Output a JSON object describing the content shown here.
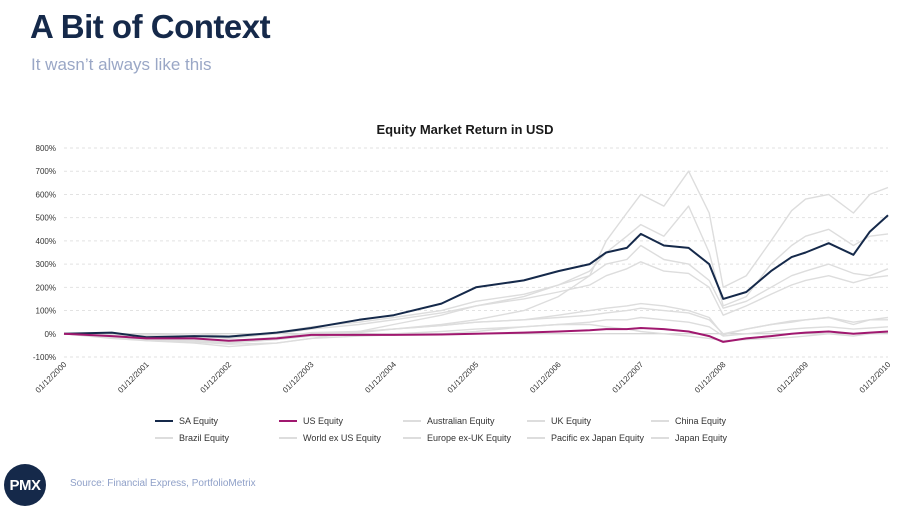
{
  "header": {
    "title": "A Bit of Context",
    "subtitle": "It wasn’t always like this"
  },
  "footer": {
    "logo": "PMX",
    "source": "Source: Financial Express, PortfolioMetrix"
  },
  "chart_data": {
    "type": "line",
    "title": "Equity Market Return in USD",
    "xlabel": "",
    "ylabel": "",
    "ylim": [
      -100,
      800
    ],
    "ytick_labels": [
      "-100%",
      "0%",
      "100%",
      "200%",
      "300%",
      "400%",
      "500%",
      "600%",
      "700%",
      "800%"
    ],
    "xtick_labels": [
      "01/12/2000",
      "01/12/2001",
      "01/12/2002",
      "01/12/2003",
      "01/12/2004",
      "01/12/2005",
      "01/12/2006",
      "01/12/2007",
      "01/12/2008",
      "01/12/2009",
      "01/12/2010"
    ],
    "x": [
      2000.92,
      2001.5,
      2001.92,
      2002.5,
      2002.92,
      2003.5,
      2003.92,
      2004.5,
      2004.92,
      2005.5,
      2005.92,
      2006.5,
      2006.92,
      2007.3,
      2007.5,
      2007.75,
      2007.92,
      2008.2,
      2008.5,
      2008.75,
      2008.92,
      2009.2,
      2009.5,
      2009.75,
      2009.92,
      2010.2,
      2010.5,
      2010.7,
      2010.92
    ],
    "grid": true,
    "legend_position": "bottom",
    "series": [
      {
        "name": "SA Equity",
        "color": "#15294a",
        "highlight": true,
        "values": [
          0,
          5,
          -15,
          -10,
          -12,
          5,
          25,
          60,
          80,
          130,
          200,
          230,
          270,
          300,
          350,
          370,
          430,
          380,
          370,
          300,
          150,
          180,
          270,
          330,
          350,
          390,
          340,
          440,
          510
        ]
      },
      {
        "name": "US Equity",
        "color": "#a0186f",
        "highlight": true,
        "values": [
          0,
          -10,
          -20,
          -20,
          -30,
          -20,
          -5,
          -5,
          -5,
          -3,
          0,
          5,
          10,
          15,
          20,
          20,
          25,
          20,
          10,
          -10,
          -35,
          -20,
          -10,
          0,
          5,
          10,
          0,
          5,
          10
        ]
      },
      {
        "name": "Australian Equity",
        "color": "#dddddd",
        "values": [
          0,
          -5,
          -5,
          0,
          -10,
          5,
          30,
          50,
          70,
          100,
          140,
          170,
          210,
          250,
          300,
          320,
          380,
          320,
          300,
          230,
          110,
          140,
          200,
          250,
          270,
          300,
          260,
          250,
          280
        ]
      },
      {
        "name": "UK Equity",
        "color": "#dddddd",
        "values": [
          0,
          -10,
          -20,
          -25,
          -35,
          -25,
          -10,
          -5,
          0,
          10,
          20,
          30,
          40,
          50,
          60,
          60,
          70,
          60,
          50,
          30,
          -10,
          0,
          10,
          20,
          25,
          30,
          20,
          25,
          30
        ]
      },
      {
        "name": "China Equity",
        "color": "#dddddd",
        "values": [
          0,
          -15,
          -25,
          -30,
          -40,
          -25,
          -5,
          5,
          20,
          40,
          60,
          100,
          160,
          250,
          400,
          520,
          600,
          550,
          700,
          520,
          200,
          250,
          400,
          530,
          580,
          600,
          520,
          600,
          630
        ]
      },
      {
        "name": "Brazil Equity",
        "color": "#dddddd",
        "values": [
          0,
          -20,
          -30,
          -40,
          -55,
          -40,
          -20,
          10,
          40,
          80,
          120,
          160,
          210,
          270,
          350,
          420,
          470,
          420,
          550,
          350,
          120,
          160,
          300,
          380,
          420,
          450,
          380,
          420,
          430
        ]
      },
      {
        "name": "World ex US Equity",
        "color": "#dddddd",
        "values": [
          0,
          -10,
          -15,
          -20,
          -30,
          -15,
          5,
          10,
          20,
          35,
          50,
          60,
          70,
          80,
          90,
          100,
          110,
          100,
          90,
          60,
          0,
          20,
          40,
          50,
          60,
          70,
          50,
          60,
          70
        ]
      },
      {
        "name": "Europe ex-UK Equity",
        "color": "#dddddd",
        "values": [
          0,
          -10,
          -20,
          -25,
          -35,
          -20,
          0,
          10,
          20,
          35,
          50,
          60,
          80,
          100,
          110,
          120,
          130,
          120,
          100,
          70,
          -5,
          20,
          40,
          55,
          60,
          70,
          40,
          60,
          60
        ]
      },
      {
        "name": "Pacific ex Japan Equity",
        "color": "#dddddd",
        "values": [
          0,
          -5,
          -10,
          -10,
          -20,
          0,
          20,
          40,
          60,
          90,
          120,
          150,
          180,
          210,
          250,
          280,
          310,
          270,
          260,
          200,
          80,
          120,
          170,
          210,
          230,
          250,
          220,
          240,
          250
        ]
      },
      {
        "name": "Japan Equity",
        "color": "#dddddd",
        "values": [
          0,
          -10,
          -30,
          -35,
          -45,
          -40,
          -20,
          -10,
          -5,
          0,
          10,
          30,
          40,
          40,
          30,
          20,
          10,
          0,
          -10,
          -20,
          -30,
          -25,
          -20,
          -15,
          -10,
          0,
          -10,
          0,
          5
        ]
      }
    ]
  }
}
